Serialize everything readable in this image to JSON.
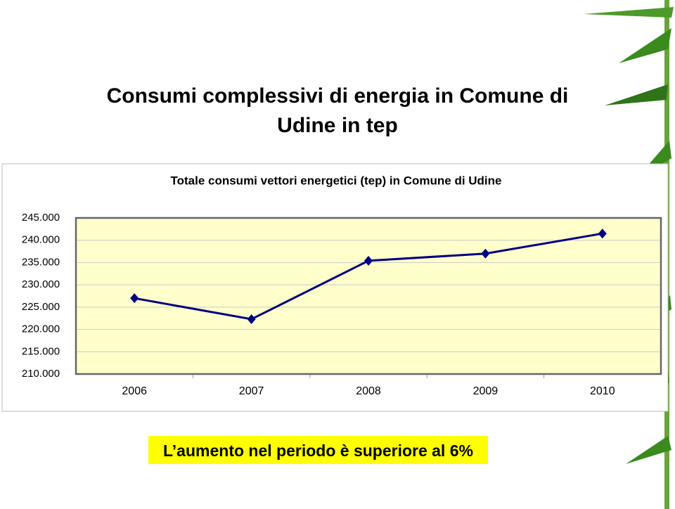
{
  "chart_data": {
    "type": "line",
    "slide_title": "Consumi complessivi di energia in Comune di Udine in tep",
    "title": "Totale consumi vettori energetici (tep) in Comune di Udine",
    "categories": [
      "2006",
      "2007",
      "2008",
      "2009",
      "2010"
    ],
    "series": [
      {
        "color": "#000080",
        "values": [
          227000,
          222300,
          235400,
          237000,
          241500
        ]
      }
    ],
    "ylim": [
      210000,
      245000
    ],
    "yticks": [
      {
        "value": 210000,
        "label": "210.000"
      },
      {
        "value": 215000,
        "label": "215.000"
      },
      {
        "value": 220000,
        "label": "220.000"
      },
      {
        "value": 225000,
        "label": "225.000"
      },
      {
        "value": 230000,
        "label": "230.000"
      },
      {
        "value": 235000,
        "label": "235.000"
      },
      {
        "value": 240000,
        "label": "240.000"
      },
      {
        "value": 245000,
        "label": "245.000"
      }
    ],
    "grid": true,
    "plot_background": "#ffffcc",
    "annotation": "L’aumento nel periodo è superiore al 6%"
  }
}
